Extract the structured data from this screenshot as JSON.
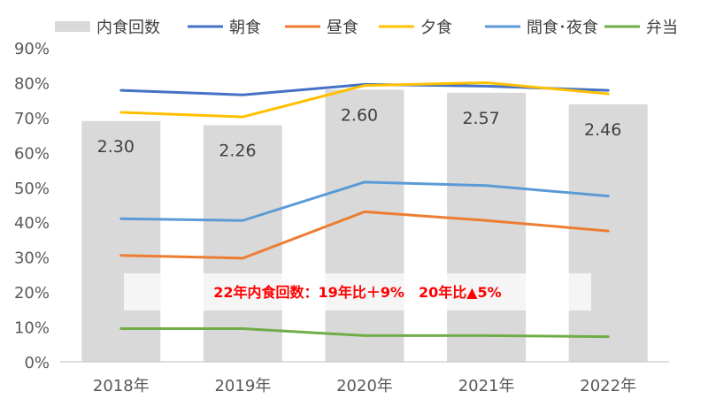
{
  "chart_data": {
    "type": "bar",
    "categories": [
      "2018年",
      "2019年",
      "2020年",
      "2021年",
      "2022年"
    ],
    "bar_series": {
      "name": "内食回数",
      "values": [
        2.3,
        2.26,
        2.6,
        2.57,
        2.46
      ],
      "labels": [
        "2.30",
        "2.26",
        "2.60",
        "2.57",
        "2.46"
      ],
      "color": "#d9d9d9"
    },
    "line_series": [
      {
        "name": "朝食",
        "values": [
          77.8,
          76.5,
          79.5,
          79.0,
          77.8
        ],
        "color": "#4472c4"
      },
      {
        "name": "昼食",
        "values": [
          30.5,
          29.7,
          43.0,
          40.5,
          37.5
        ],
        "color": "#ed7d31"
      },
      {
        "name": "夕食",
        "values": [
          71.5,
          70.2,
          79.2,
          80.0,
          76.8
        ],
        "color": "#ffc000"
      },
      {
        "name": "間食･夜食",
        "values": [
          41.0,
          40.5,
          51.5,
          50.5,
          47.5
        ],
        "color": "#5b9bd5"
      },
      {
        "name": "弁当",
        "values": [
          9.5,
          9.5,
          7.5,
          7.5,
          7.2
        ],
        "color": "#70ad47"
      }
    ],
    "y_ticks": [
      "0%",
      "10%",
      "20%",
      "30%",
      "40%",
      "50%",
      "60%",
      "70%",
      "80%",
      "90%"
    ],
    "ylim": [
      0,
      90
    ],
    "bar_axis_max": 3.0,
    "annotation": {
      "text": "22年内食回数：19年比＋9%　20年比▲5%",
      "color": "#ff0000"
    },
    "legend_position": "top"
  }
}
